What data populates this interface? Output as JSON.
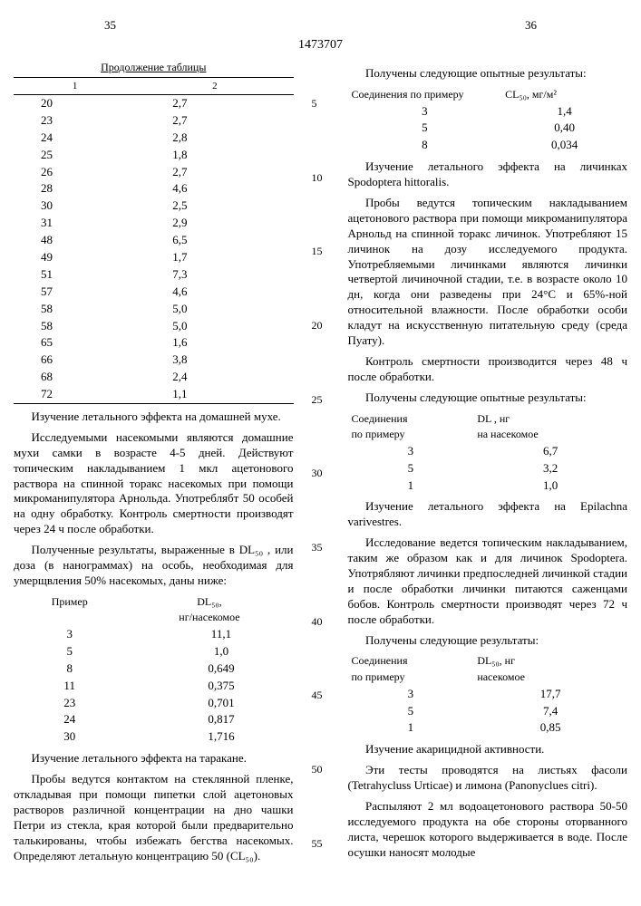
{
  "page_left": "35",
  "page_right": "36",
  "doc_number": "1473707",
  "table1": {
    "header": "Продолжение таблицы",
    "col1": "1",
    "col2": "2",
    "rows": [
      [
        "20",
        "2,7"
      ],
      [
        "23",
        "2,7"
      ],
      [
        "24",
        "2,8"
      ],
      [
        "25",
        "1,8"
      ],
      [
        "26",
        "2,7"
      ],
      [
        "28",
        "4,6"
      ],
      [
        "30",
        "2,5"
      ],
      [
        "31",
        "2,9"
      ],
      [
        "48",
        "6,5"
      ],
      [
        "49",
        "1,7"
      ],
      [
        "51",
        "7,3"
      ],
      [
        "57",
        "4,6"
      ],
      [
        "58",
        "5,0"
      ],
      [
        "58",
        "5,0"
      ],
      [
        "65",
        "1,6"
      ],
      [
        "66",
        "3,8"
      ],
      [
        "68",
        "2,4"
      ],
      [
        "72",
        "1,1"
      ]
    ]
  },
  "left": {
    "p1": "Изучение летального эффекта на домашней мухе.",
    "p2": "Исследуемыми насекомыми являются домашние мухи самки в возрасте 4-5 дней. Действуют топическим накладыванием 1 мкл ацетонового раствора на спинной торакс насекомых при помощи микроманипулятора Арнольда. Употреблябт 50 особей на одну обработку. Контроль смертности производят через 24 ч после обработки.",
    "p3": "Полученные результаты, выраженные в DL₅₀ , или доза (в нанограммах) на особь, необходимая для умерщвления 50% насекомых, даны ниже:",
    "t2": {
      "h1": "Пример",
      "h2": "DL₅₀,",
      "h2b": "нг/насекомое",
      "rows": [
        [
          "3",
          "11,1"
        ],
        [
          "5",
          "1,0"
        ],
        [
          "8",
          "0,649"
        ],
        [
          "11",
          "0,375"
        ],
        [
          "23",
          "0,701"
        ],
        [
          "24",
          "0,817"
        ],
        [
          "30",
          "1,716"
        ]
      ]
    },
    "p4": "Изучение летального эффекта на таракане.",
    "p5": "Пробы ведутся контактом на стеклянной пленке, откладывая при помощи пипетки слой ацетоновых растворов различной концентрации на дно чашки Петри из стекла, края которой были предварительно талькированы, чтобы избежать бегства насекомых. Определяют летальную концентрацию 50 (CL₅₀)."
  },
  "right": {
    "p1": "Получены следующие опытные результаты:",
    "t3": {
      "h1": "Соединения по примеру",
      "h2": "CL₅₀, мг/м²",
      "rows": [
        [
          "3",
          "1,4"
        ],
        [
          "5",
          "0,40"
        ],
        [
          "8",
          "0,034"
        ]
      ]
    },
    "p2": "Изучение летального эффекта на личинках Spodoptera hittoralis.",
    "p3": "Пробы ведутся топическим накладыванием ацетонового раствора при помощи микроманипулятора Арнольд на спинной торакс личинок. Употребляют 15 личинок на дозу исследуемого продукта. Употребляемыми личинками являются личинки четвертой личиночной стадии, т.е. в возрасте около 10 дн, когда они разведены при 24°C и 65%-ной относительной влажности. После обработки особи кладут на искусственную питательную среду (среда Пуату).",
    "p4": "Контроль смертности производится через 48 ч после обработки.",
    "p5": "Получены следующие опытные результаты:",
    "t4": {
      "h1": "Соединения",
      "h1b": "по примеру",
      "h2": "DL , нг",
      "h2b": "на насекомое",
      "rows": [
        [
          "3",
          "6,7"
        ],
        [
          "5",
          "3,2"
        ],
        [
          "1",
          "1,0"
        ]
      ]
    },
    "p6": "Изучение летального эффекта на Epilachna varivestres.",
    "p7": "Исследование ведется топическим накладыванием, таким же образом как и для личинок Spodoptera. Употрябляют личинки предпоследней личинкой стадии и после обработки личинки питаются саженцами бобов. Контроль смертности производят через 72 ч после обработки.",
    "p8": "Получены следующие результаты:",
    "t5": {
      "h1": "Соединения",
      "h1b": "по примеру",
      "h2": "DL₅₀, нг",
      "h2b": "насекомое",
      "rows": [
        [
          "3",
          "17,7"
        ],
        [
          "5",
          "7,4"
        ],
        [
          "1",
          "0,85"
        ]
      ]
    },
    "p9": "Изучение акарицидной активности.",
    "p10": "Эти тесты проводятся на листьях фасоли (Tetrahycluss Urticae) и лимона (Panonyclues citri).",
    "p11": "Распыляют 2 мл водоацетонового раствора 50-50 исследуемого продукта на обе стороны оторванного листа, черешок которого выдерживается в воде. После осушки наносят молодые"
  },
  "line_nums": [
    "5",
    "10",
    "15",
    "20",
    "25",
    "30",
    "35",
    "40",
    "45",
    "50",
    "55"
  ]
}
